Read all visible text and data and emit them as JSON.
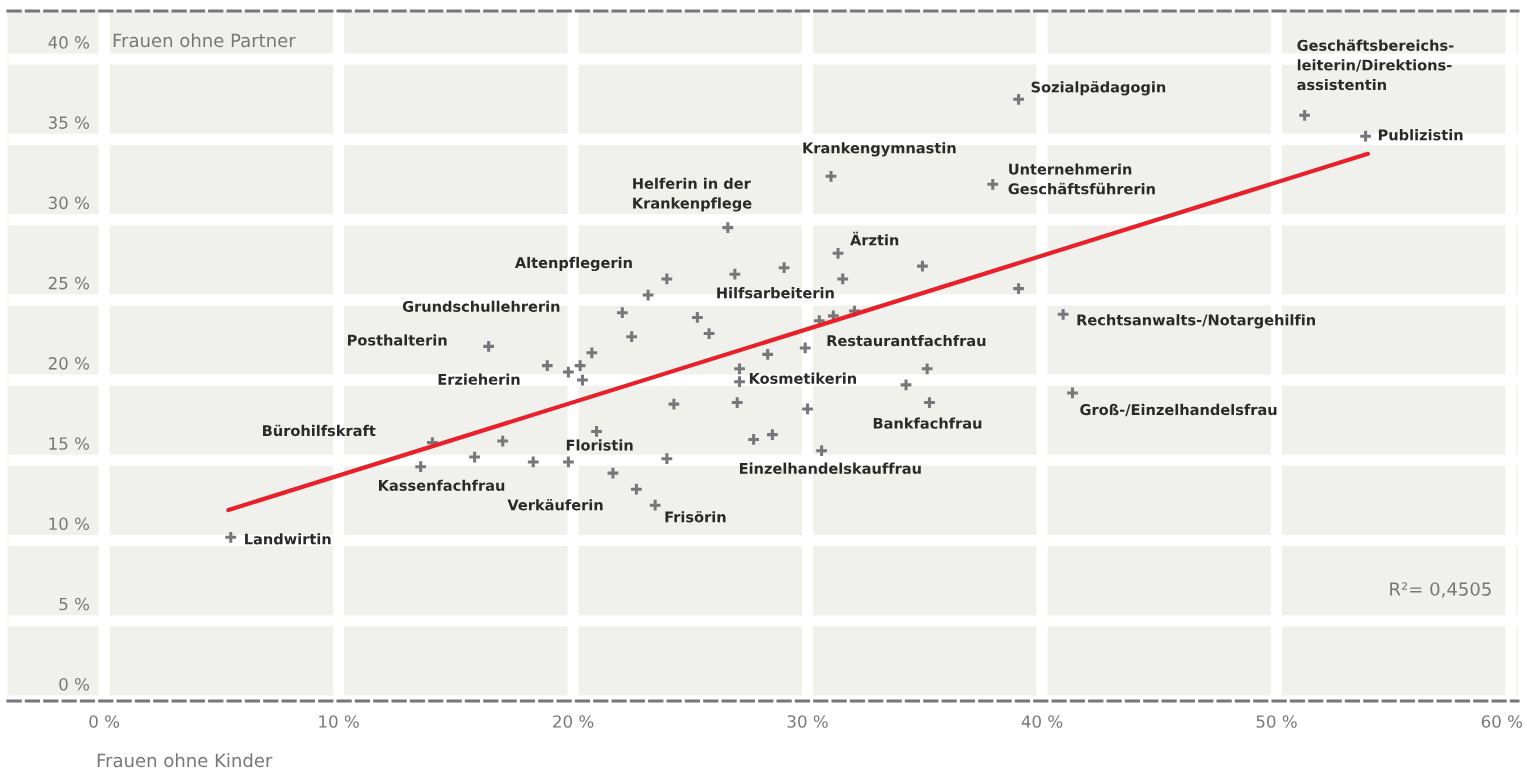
{
  "chart_data": {
    "type": "scatter",
    "xlabel": "Frauen ohne Kinder",
    "ylabel": "Frauen ohne Partner",
    "xlim": [
      -4.1,
      60.3
    ],
    "ylim": [
      0,
      43
    ],
    "xticks": [
      {
        "value": 0,
        "label": "0 %"
      },
      {
        "value": 10,
        "label": "10 %"
      },
      {
        "value": 20,
        "label": "20 %"
      },
      {
        "value": 30,
        "label": "30 %"
      },
      {
        "value": 40,
        "label": "40 %"
      },
      {
        "value": 50,
        "label": "50 %"
      },
      {
        "value": 60,
        "label": "60 %"
      }
    ],
    "yticks": [
      {
        "value": 0,
        "label": "0 %"
      },
      {
        "value": 5,
        "label": "5 %"
      },
      {
        "value": 10,
        "label": "10 %"
      },
      {
        "value": 15,
        "label": "15 %"
      },
      {
        "value": 20,
        "label": "20 %"
      },
      {
        "value": 25,
        "label": "25 %"
      },
      {
        "value": 30,
        "label": "30 %"
      },
      {
        "value": 35,
        "label": "35 %"
      },
      {
        "value": 40,
        "label": "40 %"
      }
    ],
    "grid": true,
    "series": [
      {
        "type": "scatter",
        "color": "#77777b",
        "marker": "cross",
        "x": [
          5.4,
          16.4,
          22.1,
          22.5,
          20.8,
          18.9,
          19.8,
          20.3,
          20.4,
          14.0,
          17.0,
          15.8,
          13.5,
          18.3,
          19.8,
          21.0,
          21.7,
          22.7,
          23.5,
          31.0,
          37.9,
          26.6,
          31.3,
          34.9,
          29.0,
          26.9,
          24.0,
          23.2,
          31.5,
          39.0,
          25.3,
          25.8,
          31.1,
          32.0,
          30.5,
          29.9,
          28.3,
          27.1,
          27.1,
          35.1,
          34.2,
          27.0,
          24.3,
          30.0,
          35.2,
          27.7,
          28.5,
          30.6,
          24.0,
          40.9,
          41.3,
          39.0,
          51.2,
          53.8
        ],
        "values": [
          10.2,
          22.1,
          24.2,
          22.7,
          21.7,
          20.9,
          20.5,
          20.9,
          20.0,
          16.1,
          16.2,
          15.2,
          14.6,
          14.9,
          14.9,
          16.8,
          14.2,
          13.2,
          12.2,
          32.7,
          32.2,
          29.5,
          27.9,
          27.1,
          27.0,
          26.6,
          26.3,
          25.3,
          26.3,
          25.7,
          23.9,
          22.9,
          24.0,
          24.3,
          23.7,
          22.0,
          21.6,
          20.7,
          19.9,
          20.7,
          19.7,
          18.6,
          18.5,
          18.2,
          18.6,
          16.3,
          16.6,
          15.6,
          15.1,
          24.1,
          19.2,
          37.5,
          36.5,
          35.2
        ]
      },
      {
        "type": "line",
        "color": "#e8202a",
        "x": [
          5.3,
          53.9
        ],
        "values": [
          11.9,
          34.1
        ]
      }
    ],
    "annotations": [
      {
        "text": "Geschäftsbereichs-\nleiterin/Direktions-\nassistentin",
        "x": 51.2,
        "y": 36.5
      },
      {
        "text": "Sozialpädagogin",
        "x": 39.0,
        "y": 37.5
      },
      {
        "text": "Publizistin",
        "x": 53.8,
        "y": 35.2
      },
      {
        "text": "Krankengymnastin",
        "x": 31.0,
        "y": 32.7
      },
      {
        "text": "Unternehmerin\nGeschäftsführerin",
        "x": 37.9,
        "y": 32.2
      },
      {
        "text": "Helferin in der\nKrankenpflege",
        "x": 26.6,
        "y": 29.5
      },
      {
        "text": "Ärztin",
        "x": 31.3,
        "y": 27.9
      },
      {
        "text": "Altenpflegerin",
        "x": 24.0,
        "y": 26.3
      },
      {
        "text": "Hilfsarbeiterin",
        "x": 26.9,
        "y": 26.6
      },
      "Grundschullehrerin",
      {
        "text": "Rechtsanwalts-/Notargehilfin",
        "x": 40.9,
        "y": 24.1
      },
      {
        "text": "Posthalterin",
        "x": 16.4,
        "y": 22.1
      },
      {
        "text": "Restaurantfachfrau",
        "x": 29.9,
        "y": 22.0
      },
      {
        "text": "Erzieherin",
        "x": 18.9,
        "y": 20.9
      },
      {
        "text": "Kosmetikerin",
        "x": 27.1,
        "y": 19.9
      },
      {
        "text": "Groß-/Einzelhandelsfrau",
        "x": 41.3,
        "y": 19.2
      },
      {
        "text": "Bankfachfrau",
        "x": 35.2,
        "y": 18.6
      },
      "Bürohilfskraft",
      {
        "text": "Floristin",
        "x": 21.0,
        "y": 16.8
      },
      {
        "text": "Einzelhandelskauffrau",
        "x": 30.6,
        "y": 15.6
      },
      {
        "text": "Kassenfachfrau",
        "x": 13.5,
        "y": 14.6
      },
      {
        "text": "Verkäuferin",
        "x": 22.7,
        "y": 13.2
      },
      {
        "text": "Frisörin",
        "x": 23.5,
        "y": 12.2
      },
      {
        "text": "Landwirtin",
        "x": 5.4,
        "y": 10.2
      },
      "R²= 0,4505"
    ]
  }
}
